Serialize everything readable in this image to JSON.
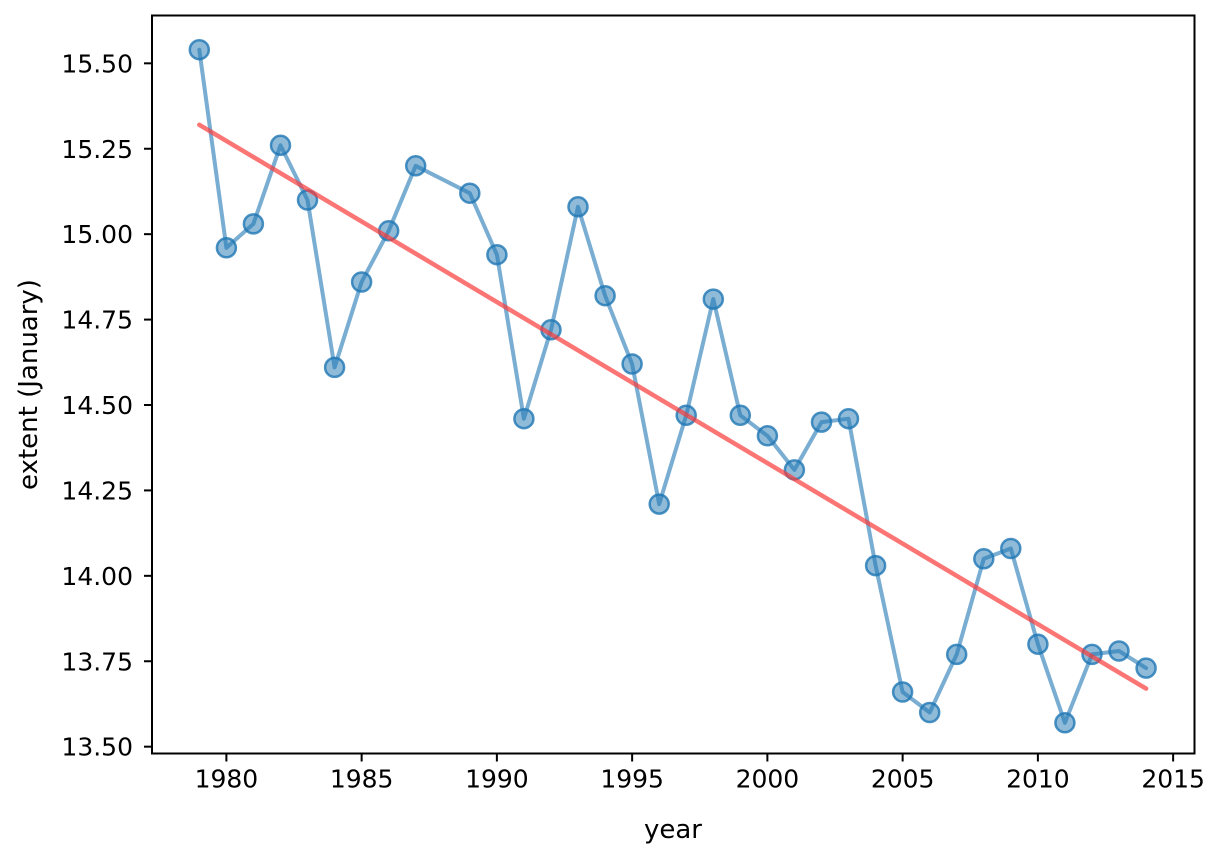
{
  "figure": {
    "background": "#ffffff",
    "frame_color": "#000000"
  },
  "chart_data": {
    "type": "line",
    "title": "",
    "xlabel": "year",
    "ylabel": "extent (January)",
    "xlim": [
      1977.25,
      2015.79
    ],
    "ylim": [
      13.48,
      15.64
    ],
    "grid": false,
    "legend": null,
    "x_ticks": [
      {
        "v": 1980,
        "label": "1980"
      },
      {
        "v": 1985,
        "label": "1985"
      },
      {
        "v": 1990,
        "label": "1990"
      },
      {
        "v": 1995,
        "label": "1995"
      },
      {
        "v": 2000,
        "label": "2000"
      },
      {
        "v": 2005,
        "label": "2005"
      },
      {
        "v": 2010,
        "label": "2010"
      },
      {
        "v": 2015,
        "label": "2015"
      }
    ],
    "y_ticks": [
      {
        "v": 13.5,
        "label": "13.50"
      },
      {
        "v": 13.75,
        "label": "13.75"
      },
      {
        "v": 14.0,
        "label": "14.00"
      },
      {
        "v": 14.25,
        "label": "14.25"
      },
      {
        "v": 14.5,
        "label": "14.50"
      },
      {
        "v": 14.75,
        "label": "14.75"
      },
      {
        "v": 15.0,
        "label": "15.00"
      },
      {
        "v": 15.25,
        "label": "15.25"
      },
      {
        "v": 15.5,
        "label": "15.50"
      }
    ],
    "series": [
      {
        "name": "january-extent",
        "type": "line+markers",
        "line_color": "rgba(31,119,180,0.6)",
        "marker_fill": "rgba(31,119,180,0.5)",
        "marker_edge": "rgba(31,119,180,0.8)",
        "line_width": 4,
        "marker_radius": 9.5,
        "x": [
          1979,
          1980,
          1981,
          1982,
          1983,
          1984,
          1985,
          1986,
          1987,
          1989,
          1990,
          1991,
          1992,
          1993,
          1994,
          1995,
          1996,
          1997,
          1998,
          1999,
          2000,
          2001,
          2002,
          2003,
          2004,
          2005,
          2006,
          2007,
          2008,
          2009,
          2010,
          2011,
          2012,
          2013,
          2014
        ],
        "y": [
          15.54,
          14.96,
          15.03,
          15.26,
          15.1,
          14.61,
          14.86,
          15.01,
          15.2,
          15.12,
          14.94,
          14.46,
          14.72,
          15.08,
          14.82,
          14.62,
          14.21,
          14.47,
          14.81,
          14.47,
          14.41,
          14.31,
          14.45,
          14.46,
          14.03,
          13.66,
          13.6,
          13.77,
          14.05,
          14.08,
          13.8,
          13.57,
          13.77,
          13.78,
          13.73
        ]
      },
      {
        "name": "linear-trend",
        "type": "line",
        "color": "rgba(250,59,59,0.7)",
        "line_width": 4.5,
        "x": [
          1979,
          2014
        ],
        "y": [
          15.32,
          13.67
        ]
      }
    ]
  }
}
